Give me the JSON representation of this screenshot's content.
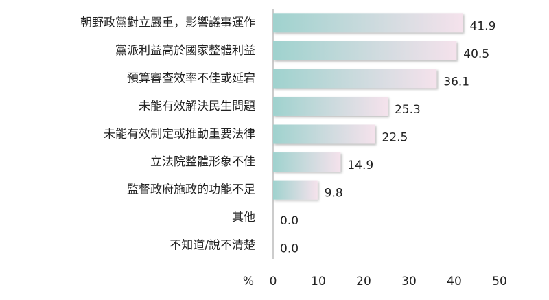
{
  "chart_data": {
    "type": "bar",
    "orientation": "horizontal",
    "categories": [
      "朝野政黨對立嚴重，影響議事運作",
      "黨派利益高於國家整體利益",
      "預算審查效率不佳或延宕",
      "未能有效解決民生問題",
      "未能有效制定或推動重要法律",
      "立法院整體形象不佳",
      "監督政府施政的功能不足",
      "其他",
      "不知道/說不清楚"
    ],
    "values": [
      41.9,
      40.5,
      36.1,
      25.3,
      22.5,
      14.9,
      9.8,
      0,
      0
    ],
    "value_labels": [
      "41.9",
      "40.5",
      "36.1",
      "25.3",
      "22.5",
      "14.9",
      "9.8",
      "0.0",
      "0.0"
    ],
    "colors": [
      "#9fd2ce",
      "#f5e2ec"
    ],
    "xlabel": "%",
    "xlim": [
      0,
      50
    ],
    "xticks": [
      0,
      10,
      20,
      30,
      40,
      50
    ]
  }
}
